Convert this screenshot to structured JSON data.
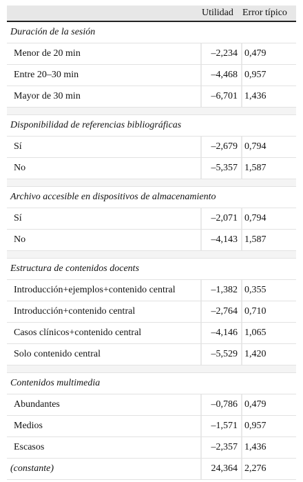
{
  "header": {
    "col_utilidad": "Utilidad",
    "col_error": "Error típico"
  },
  "groups": [
    {
      "title": "Duración de la sesión",
      "rows": [
        {
          "label": "Menor de 20 min",
          "utilidad": "–2,234",
          "error": "0,479"
        },
        {
          "label": "Entre 20–30 min",
          "utilidad": "–4,468",
          "error": "0,957"
        },
        {
          "label": "Mayor de 30 min",
          "utilidad": "–6,701",
          "error": "1,436"
        }
      ]
    },
    {
      "title": "Disponibilidad de referencias bibliográficas",
      "rows": [
        {
          "label": "Sí",
          "utilidad": "–2,679",
          "error": "0,794"
        },
        {
          "label": "No",
          "utilidad": "–5,357",
          "error": "1,587"
        }
      ]
    },
    {
      "title": "Archivo accesible en dispositivos de almacenamiento",
      "rows": [
        {
          "label": "Sí",
          "utilidad": "–2,071",
          "error": "0,794"
        },
        {
          "label": "No",
          "utilidad": "–4,143",
          "error": "1,587"
        }
      ]
    },
    {
      "title": "Estructura de contenidos docents",
      "rows": [
        {
          "label": "Introducción+ejemplos+contenido central",
          "utilidad": "–1,382",
          "error": "0,355"
        },
        {
          "label": "Introducción+contenido central",
          "utilidad": "–2,764",
          "error": "0,710"
        },
        {
          "label": "Casos clínicos+contenido central",
          "utilidad": "–4,146",
          "error": "1,065"
        },
        {
          "label": "Solo contenido central",
          "utilidad": "–5,529",
          "error": "1,420"
        }
      ]
    },
    {
      "title": "Contenidos multimedia",
      "rows": [
        {
          "label": "Abundantes",
          "utilidad": "–0,786",
          "error": "0,479"
        },
        {
          "label": "Medios",
          "utilidad": "–1,571",
          "error": "0,957"
        },
        {
          "label": "Escasos",
          "utilidad": "–2,357",
          "error": "1,436"
        }
      ]
    }
  ],
  "constant": {
    "label": "(constante)",
    "utilidad": "24,364",
    "error": "2,276"
  }
}
